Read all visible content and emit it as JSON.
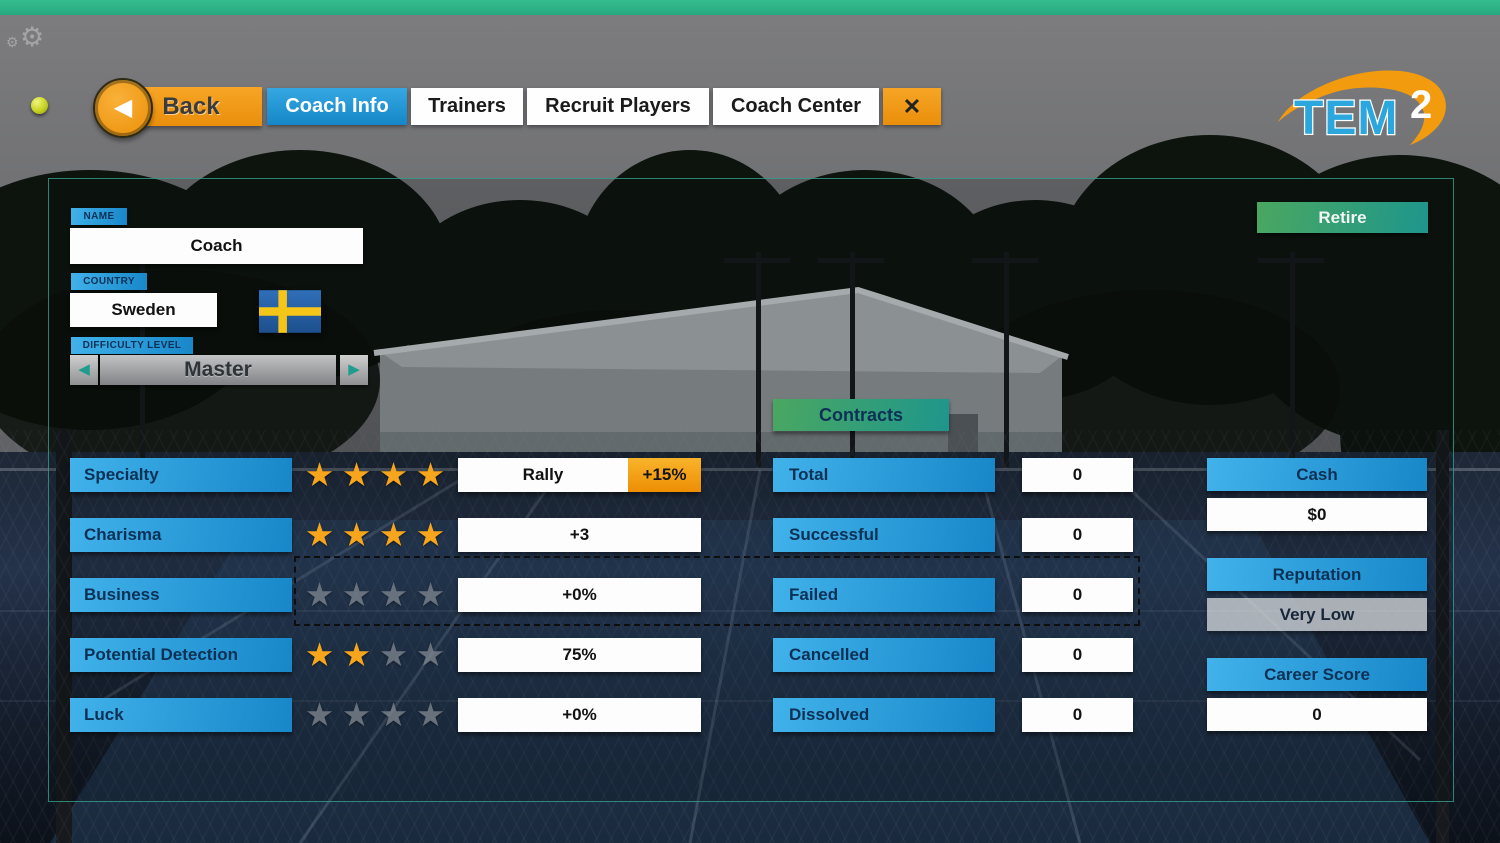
{
  "header": {
    "back_label": "Back",
    "tabs": [
      {
        "label": "Coach Info",
        "active": true
      },
      {
        "label": "Trainers",
        "active": false
      },
      {
        "label": "Recruit Players",
        "active": false
      },
      {
        "label": "Coach Center",
        "active": false
      }
    ],
    "logo_text": "TEM",
    "logo_sup": "2"
  },
  "icons": {
    "back_arrow": "◀",
    "left_arrow": "◀",
    "right_arrow": "▶",
    "close": "✕",
    "star": "★",
    "gear": "⚙"
  },
  "profile": {
    "name_label": "NAME",
    "name_value": "Coach",
    "country_label": "COUNTRY",
    "country_value": "Sweden",
    "country_flag": "sweden-flag",
    "difficulty_label": "DIFFICULTY LEVEL",
    "difficulty_value": "Master"
  },
  "stats": {
    "max_stars": 4,
    "rows": [
      {
        "label": "Specialty",
        "stars": 4,
        "value": "Rally",
        "bonus": "+15%"
      },
      {
        "label": "Charisma",
        "stars": 4,
        "value": "+3"
      },
      {
        "label": "Business",
        "stars": 0,
        "value": "+0%",
        "selected": true
      },
      {
        "label": "Potential Detection",
        "stars": 2,
        "value": "75%"
      },
      {
        "label": "Luck",
        "stars": 0,
        "value": "+0%"
      }
    ]
  },
  "contracts": {
    "title": "Contracts",
    "rows": [
      {
        "label": "Total",
        "value": "0"
      },
      {
        "label": "Successful",
        "value": "0"
      },
      {
        "label": "Failed",
        "value": "0"
      },
      {
        "label": "Cancelled",
        "value": "0"
      },
      {
        "label": "Dissolved",
        "value": "0"
      }
    ]
  },
  "summary": {
    "retire_label": "Retire",
    "cash_label": "Cash",
    "cash_value": "$0",
    "reputation_label": "Reputation",
    "reputation_value": "Very Low",
    "career_label": "Career Score",
    "career_value": "0"
  },
  "colors": {
    "accent_blue": "#1787c9",
    "accent_blue_light": "#41b2ea",
    "accent_orange": "#ee8e04",
    "accent_teal": "#1e968c",
    "accent_green": "#4aa761",
    "star_on": "#f6a51c",
    "star_off": "#858c94",
    "label_navy": "#0d3154",
    "top_strip_green": "#2fb389",
    "panel_border_teal": "#34a08c",
    "logo_blue": "#2ba7dd"
  }
}
